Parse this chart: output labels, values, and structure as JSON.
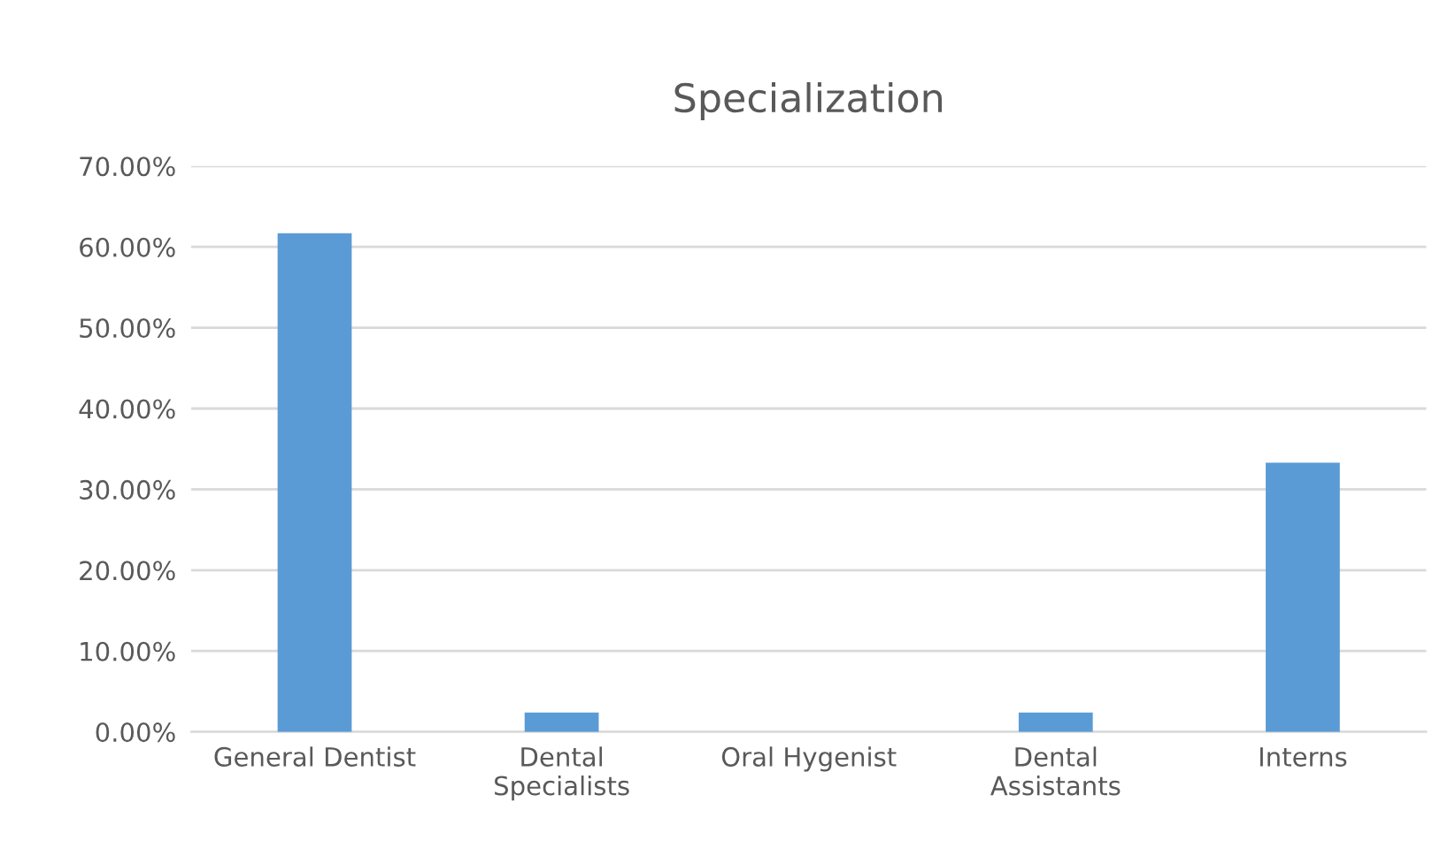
{
  "chart_data": {
    "type": "bar",
    "title": "Specialization",
    "categories": [
      "General Dentist",
      "Dental\nSpecialists",
      "Oral Hygenist",
      "Dental\nAssistants",
      "Interns"
    ],
    "values": [
      61.7,
      2.4,
      0,
      2.4,
      33.3
    ],
    "color": "#5b9bd5",
    "ylim": [
      0,
      70
    ],
    "yticks": [
      {
        "value": 0,
        "label": "0.00%"
      },
      {
        "value": 10,
        "label": "10.00%"
      },
      {
        "value": 20,
        "label": "20.00%"
      },
      {
        "value": 30,
        "label": "30.00%"
      },
      {
        "value": 40,
        "label": "40.00%"
      },
      {
        "value": 50,
        "label": "50.00%"
      },
      {
        "value": 60,
        "label": "60.00%"
      },
      {
        "value": 70,
        "label": "70.00%"
      }
    ],
    "grid": "y"
  }
}
